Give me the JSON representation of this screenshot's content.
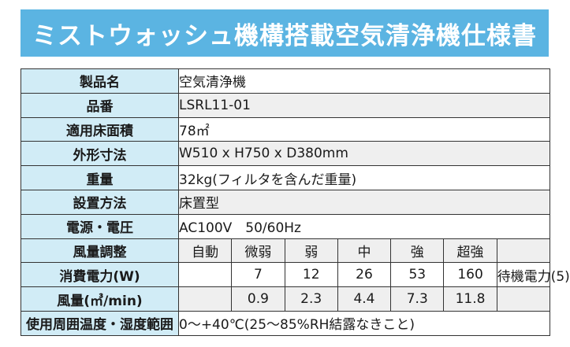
{
  "title": "ミストウォッシュ機構搭載空気清浄機仕様書",
  "rows": [
    {
      "label": "製品名",
      "value": "空気清浄機"
    },
    {
      "label": "品番",
      "value": "LSRL11-01"
    },
    {
      "label": "適用床面積",
      "value": "78㎡"
    },
    {
      "label": "外形寸法",
      "value": "W510 x H750 x D380mm"
    },
    {
      "label": "重量",
      "value": "32kg(フィルタを含んだ重量)"
    },
    {
      "label": "設置方法",
      "value": "床置型"
    },
    {
      "label": "電源・電圧",
      "value": "AC100V　50/60Hz"
    }
  ],
  "airflow": {
    "label": "風量調整",
    "levels": [
      "自動",
      "微弱",
      "弱",
      "中",
      "強",
      "超強"
    ]
  },
  "power": {
    "label": "消費電力(W)",
    "values": [
      "",
      "7",
      "12",
      "26",
      "53",
      "160"
    ],
    "standby": "待機電力(5)"
  },
  "volume": {
    "label": "風量(㎥/min)",
    "values": [
      "",
      "0.9",
      "2.3",
      "4.4",
      "7.3",
      "11.8"
    ]
  },
  "environment": {
    "label": "使用周囲温度・湿度範囲",
    "value": "0〜+40℃(25〜85%RH結露なきこと)"
  }
}
